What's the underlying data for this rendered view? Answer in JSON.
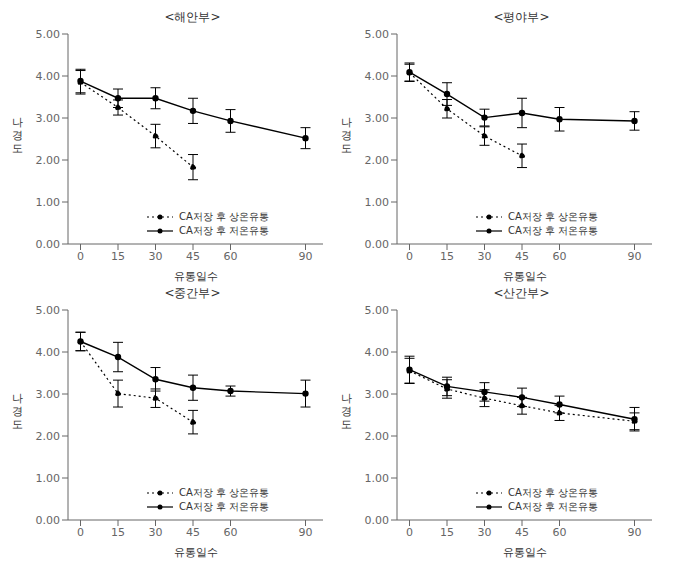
{
  "chart_data": [
    {
      "type": "line",
      "title": "<해안부>",
      "xlabel": "유통일수",
      "ylabel": "나\n경\n도",
      "xlim": [
        -5,
        97
      ],
      "xticks": [
        0,
        15,
        30,
        45,
        60,
        90
      ],
      "ylim": [
        0.0,
        5.0
      ],
      "yticks": [
        {
          "value": 0.0,
          "label": "0.00"
        },
        {
          "value": 1.0,
          "label": "1.00"
        },
        {
          "value": 2.0,
          "label": "2.00"
        },
        {
          "value": 3.0,
          "label": "3.00"
        },
        {
          "value": 4.0,
          "label": "4.00"
        },
        {
          "value": 5.0,
          "label": "5.00"
        }
      ],
      "grid": false,
      "legend": "bottom",
      "series": [
        {
          "name": "CA저장 후 상온유통",
          "color": "#000000",
          "line_style": "dotted",
          "marker": "circle",
          "x": [
            0,
            15,
            30,
            45
          ],
          "values": [
            3.85,
            3.25,
            2.57,
            1.83
          ],
          "yerr": [
            0.28,
            0.18,
            0.28,
            0.3
          ]
        },
        {
          "name": "CA저장 후 저온유통",
          "color": "#000000",
          "line_style": "solid",
          "marker": "circle",
          "x": [
            0,
            15,
            30,
            45,
            60,
            90
          ],
          "values": [
            3.88,
            3.47,
            3.47,
            3.17,
            2.93,
            2.52
          ],
          "yerr": [
            0.28,
            0.22,
            0.25,
            0.3,
            0.27,
            0.25
          ]
        }
      ]
    },
    {
      "type": "line",
      "title": "<평야부>",
      "xlabel": "유통일수",
      "ylabel": "나\n경\n도",
      "xlim": [
        -5,
        97
      ],
      "xticks": [
        0,
        15,
        30,
        45,
        60,
        90
      ],
      "ylim": [
        0.0,
        5.0
      ],
      "yticks": [
        {
          "value": 0.0,
          "label": "0.00"
        },
        {
          "value": 1.0,
          "label": "1.00"
        },
        {
          "value": 2.0,
          "label": "2.00"
        },
        {
          "value": 3.0,
          "label": "3.00"
        },
        {
          "value": 4.0,
          "label": "4.00"
        },
        {
          "value": 5.0,
          "label": "5.00"
        }
      ],
      "grid": false,
      "legend": "bottom",
      "series": [
        {
          "name": "CA저장 후 상온유통",
          "color": "#000000",
          "line_style": "dotted",
          "marker": "circle",
          "x": [
            0,
            15,
            30,
            45
          ],
          "values": [
            4.08,
            3.22,
            2.57,
            2.1
          ],
          "yerr": [
            0.2,
            0.22,
            0.22,
            0.28
          ]
        },
        {
          "name": "CA저장 후 저온유통",
          "color": "#000000",
          "line_style": "solid",
          "marker": "circle",
          "x": [
            0,
            15,
            30,
            45,
            60,
            90
          ],
          "values": [
            4.09,
            3.57,
            3.01,
            3.12,
            2.97,
            2.93
          ],
          "yerr": [
            0.22,
            0.27,
            0.2,
            0.35,
            0.28,
            0.22
          ]
        }
      ]
    },
    {
      "type": "line",
      "title": "<중간부>",
      "xlabel": "유통일수",
      "ylabel": "나\n경\n도",
      "xlim": [
        -5,
        97
      ],
      "xticks": [
        0,
        15,
        30,
        45,
        60,
        90
      ],
      "ylim": [
        0.0,
        5.0
      ],
      "yticks": [
        {
          "value": 0.0,
          "label": "0.00"
        },
        {
          "value": 1.0,
          "label": "1.00"
        },
        {
          "value": 2.0,
          "label": "2.00"
        },
        {
          "value": 3.0,
          "label": "3.00"
        },
        {
          "value": 4.0,
          "label": "4.00"
        },
        {
          "value": 5.0,
          "label": "5.00"
        }
      ],
      "grid": false,
      "legend": "bottom",
      "series": [
        {
          "name": "CA저장 후 상온유통",
          "color": "#000000",
          "line_style": "dotted",
          "marker": "circle",
          "x": [
            0,
            15,
            30,
            45
          ],
          "values": [
            4.25,
            3.01,
            2.9,
            2.33
          ],
          "yerr": [
            0.22,
            0.32,
            0.22,
            0.28
          ]
        },
        {
          "name": "CA저장 후 저온유통",
          "color": "#000000",
          "line_style": "solid",
          "marker": "circle",
          "x": [
            0,
            15,
            30,
            45,
            60,
            90
          ],
          "values": [
            4.25,
            3.88,
            3.35,
            3.15,
            3.07,
            3.01
          ],
          "yerr": [
            0.22,
            0.35,
            0.28,
            0.3,
            0.12,
            0.32
          ]
        }
      ]
    },
    {
      "type": "line",
      "title": "<산간부>",
      "xlabel": "유통일수",
      "ylabel": "나\n경\n도",
      "xlim": [
        -5,
        97
      ],
      "xticks": [
        0,
        15,
        30,
        45,
        60,
        90
      ],
      "ylim": [
        0.0,
        5.0
      ],
      "yticks": [
        {
          "value": 0.0,
          "label": "0.00"
        },
        {
          "value": 1.0,
          "label": "1.00"
        },
        {
          "value": 2.0,
          "label": "2.00"
        },
        {
          "value": 3.0,
          "label": "3.00"
        },
        {
          "value": 4.0,
          "label": "4.00"
        },
        {
          "value": 5.0,
          "label": "5.00"
        }
      ],
      "grid": false,
      "legend": "bottom",
      "series": [
        {
          "name": "CA저장 후 상온유통",
          "color": "#000000",
          "line_style": "dotted",
          "marker": "circle",
          "x": [
            0,
            15,
            30,
            45,
            60,
            90
          ],
          "values": [
            3.55,
            3.12,
            2.9,
            2.72,
            2.55,
            2.35
          ],
          "yerr": [
            0.3,
            0.22,
            0.2,
            0.2,
            0.18,
            0.2
          ]
        },
        {
          "name": "CA저장 후 저온유통",
          "color": "#000000",
          "line_style": "solid",
          "marker": "circle",
          "x": [
            0,
            15,
            30,
            45,
            60,
            90
          ],
          "values": [
            3.58,
            3.18,
            3.05,
            2.92,
            2.75,
            2.4
          ],
          "yerr": [
            0.32,
            0.22,
            0.22,
            0.22,
            0.2,
            0.28
          ]
        }
      ]
    }
  ]
}
